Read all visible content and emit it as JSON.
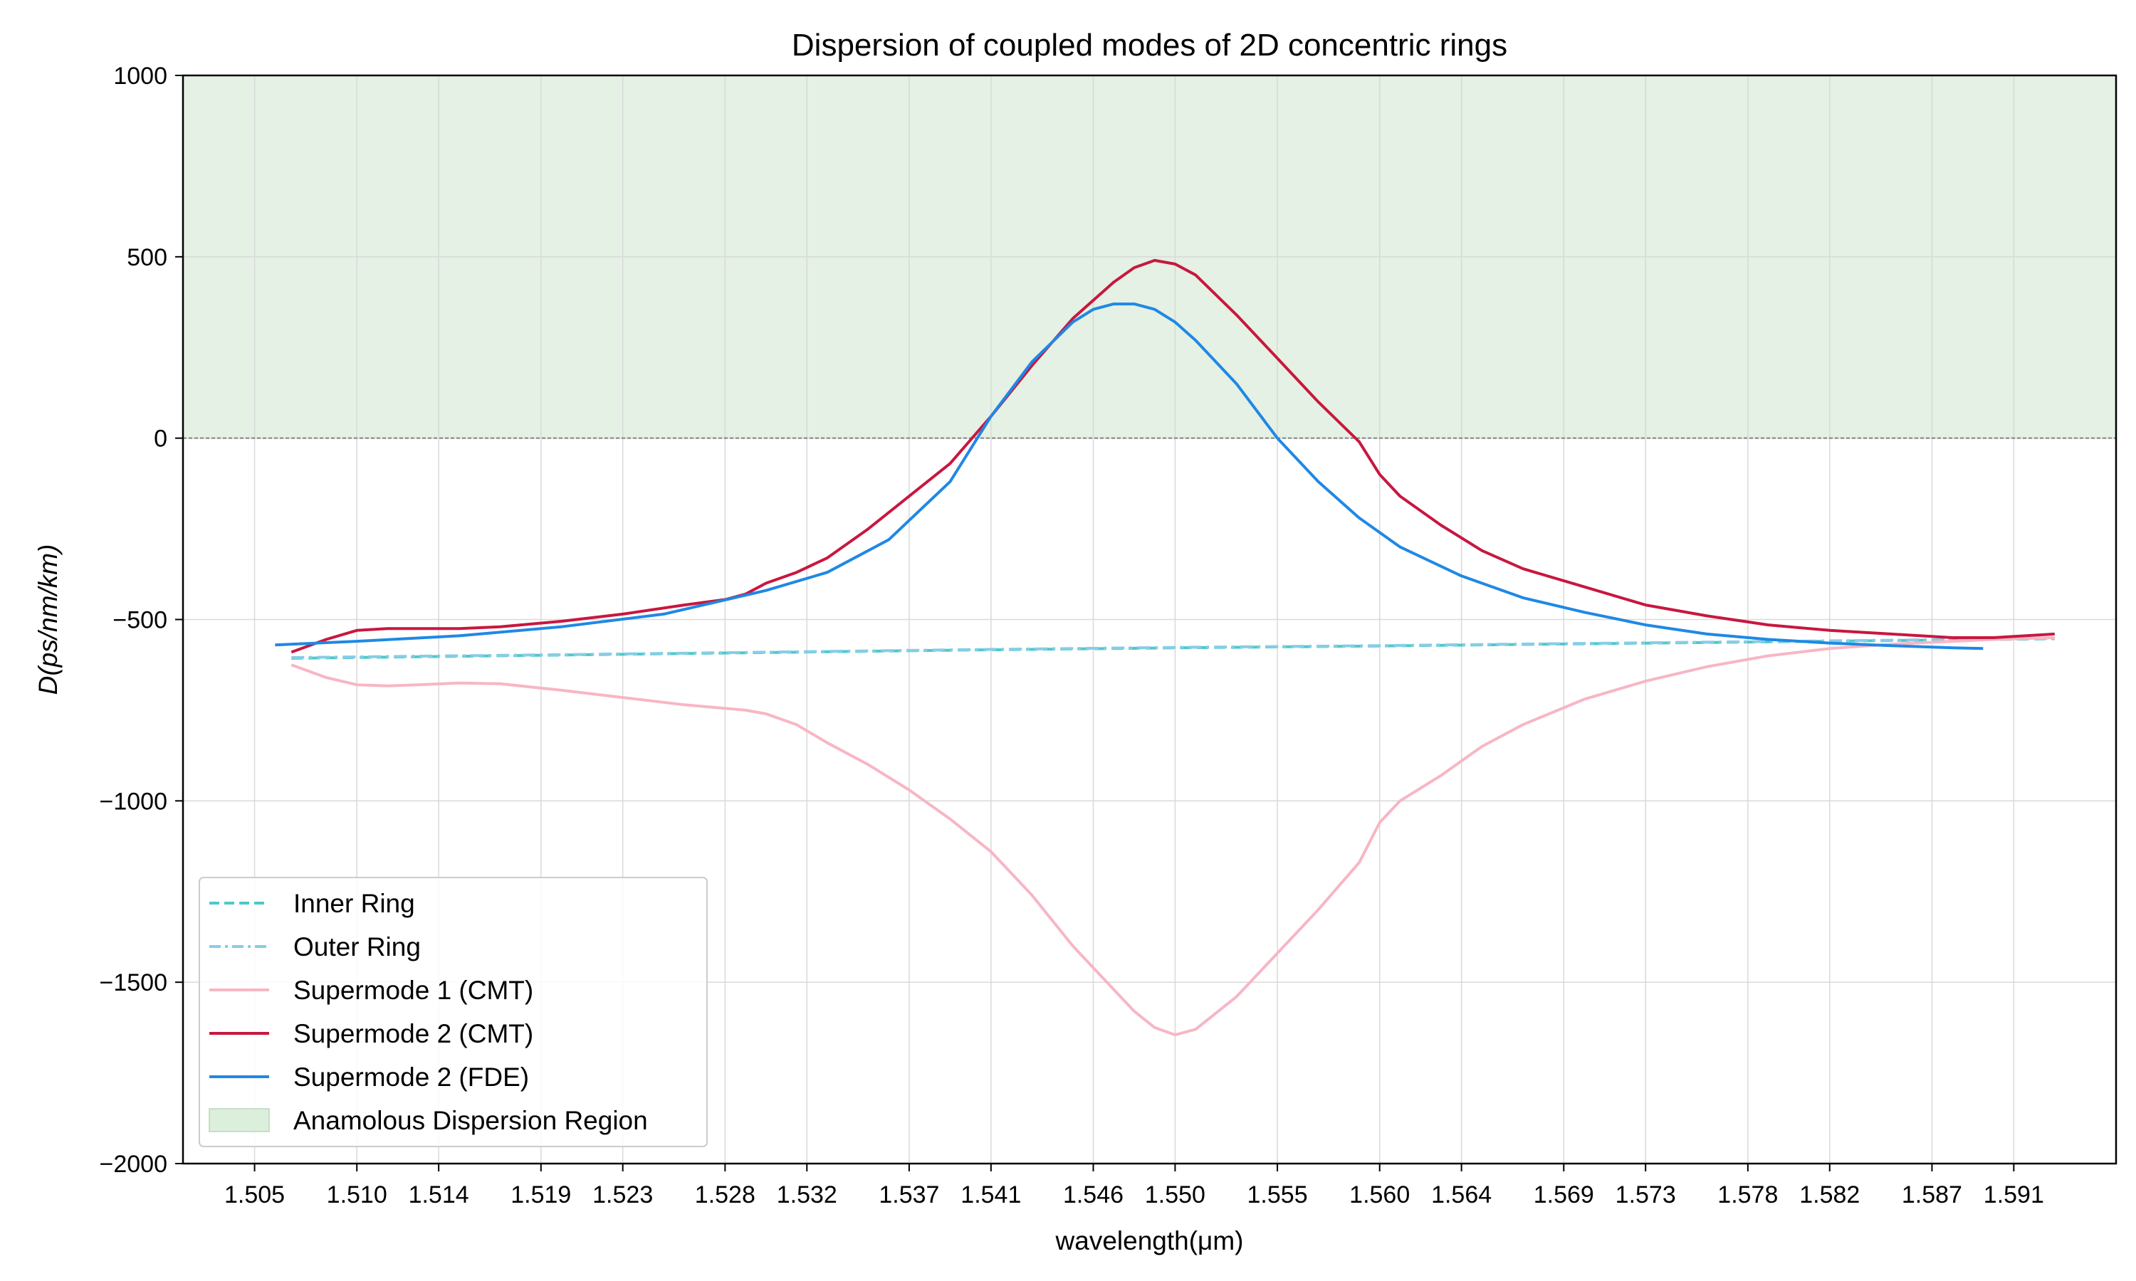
{
  "chart_data": {
    "type": "line",
    "title": "Dispersion of coupled modes of 2D concentric rings",
    "xlabel": "wavelength(μm)",
    "ylabel": "D(ps/nm/km)",
    "xlim": [
      1.5015,
      1.596
    ],
    "ylim": [
      -2000,
      1000
    ],
    "x_ticks": [
      "1.505",
      "1.510",
      "1.514",
      "1.519",
      "1.523",
      "1.528",
      "1.532",
      "1.537",
      "1.541",
      "1.546",
      "1.550",
      "1.555",
      "1.560",
      "1.564",
      "1.569",
      "1.573",
      "1.578",
      "1.582",
      "1.587",
      "1.591"
    ],
    "y_ticks": [
      1000,
      500,
      0,
      -500,
      -1000,
      -1500,
      -2000
    ],
    "y_tick_labels": [
      "1000",
      "500",
      "0",
      "−500",
      "−1000",
      "−1500",
      "−2000"
    ],
    "grid": true,
    "legend_position": "lower-left",
    "shaded_region": {
      "name": "Anamolous Dispersion Region",
      "y_from": 0,
      "y_to": 1000,
      "color": "#e4f1e4"
    },
    "reference_line": {
      "y": 0,
      "style": "dashed",
      "color": "#808080"
    },
    "series": [
      {
        "name": "Inner Ring",
        "color": "#4cc9c9",
        "style": "dashed",
        "x": [
          1.5068,
          1.52,
          1.53,
          1.54,
          1.55,
          1.56,
          1.57,
          1.58,
          1.59,
          1.593
        ],
        "y": [
          -607,
          -598,
          -591,
          -584,
          -578,
          -573,
          -567,
          -561,
          -555,
          -553
        ]
      },
      {
        "name": "Outer Ring",
        "color": "#87cde6",
        "style": "dashdot",
        "x": [
          1.5068,
          1.52,
          1.53,
          1.54,
          1.55,
          1.56,
          1.57,
          1.58,
          1.59,
          1.593
        ],
        "y": [
          -605,
          -597,
          -590,
          -583,
          -577,
          -572,
          -566,
          -560,
          -554,
          -552
        ]
      },
      {
        "name": "Supermode 1 (CMT)",
        "color": "#f7b6c4",
        "style": "solid",
        "x": [
          1.5068,
          1.5085,
          1.51,
          1.5115,
          1.513,
          1.515,
          1.517,
          1.52,
          1.523,
          1.526,
          1.529,
          1.53,
          1.5315,
          1.533,
          1.535,
          1.537,
          1.539,
          1.541,
          1.543,
          1.545,
          1.547,
          1.548,
          1.549,
          1.55,
          1.551,
          1.553,
          1.555,
          1.557,
          1.559,
          1.56,
          1.561,
          1.563,
          1.565,
          1.567,
          1.57,
          1.573,
          1.576,
          1.579,
          1.582,
          1.585,
          1.588,
          1.59,
          1.593
        ],
        "y": [
          -625,
          -660,
          -680,
          -683,
          -680,
          -675,
          -677,
          -695,
          -715,
          -735,
          -750,
          -760,
          -790,
          -840,
          -900,
          -970,
          -1050,
          -1140,
          -1260,
          -1400,
          -1520,
          -1580,
          -1625,
          -1645,
          -1630,
          -1540,
          -1420,
          -1300,
          -1170,
          -1060,
          -1000,
          -930,
          -850,
          -790,
          -720,
          -670,
          -630,
          -600,
          -580,
          -568,
          -560,
          -555,
          -550
        ]
      },
      {
        "name": "Supermode 2 (CMT)",
        "color": "#c8173f",
        "style": "solid",
        "x": [
          1.5068,
          1.5085,
          1.51,
          1.5115,
          1.513,
          1.515,
          1.517,
          1.52,
          1.523,
          1.526,
          1.528,
          1.529,
          1.53,
          1.5315,
          1.533,
          1.535,
          1.537,
          1.539,
          1.541,
          1.543,
          1.545,
          1.546,
          1.547,
          1.548,
          1.549,
          1.55,
          1.551,
          1.553,
          1.555,
          1.557,
          1.559,
          1.56,
          1.561,
          1.563,
          1.565,
          1.567,
          1.57,
          1.573,
          1.576,
          1.579,
          1.582,
          1.585,
          1.588,
          1.59,
          1.593
        ],
        "y": [
          -590,
          -555,
          -530,
          -525,
          -525,
          -525,
          -520,
          -505,
          -485,
          -460,
          -445,
          -430,
          -400,
          -370,
          -330,
          -250,
          -160,
          -70,
          60,
          200,
          330,
          380,
          430,
          470,
          490,
          480,
          450,
          340,
          220,
          100,
          -10,
          -100,
          -160,
          -240,
          -310,
          -360,
          -410,
          -460,
          -490,
          -515,
          -530,
          -540,
          -550,
          -550,
          -540
        ]
      },
      {
        "name": "Supermode 2 (FDE)",
        "color": "#1f88e5",
        "style": "solid",
        "x": [
          1.506,
          1.51,
          1.515,
          1.52,
          1.525,
          1.53,
          1.533,
          1.536,
          1.539,
          1.541,
          1.543,
          1.545,
          1.546,
          1.547,
          1.548,
          1.549,
          1.55,
          1.551,
          1.553,
          1.555,
          1.557,
          1.559,
          1.561,
          1.564,
          1.567,
          1.57,
          1.573,
          1.576,
          1.579,
          1.582,
          1.585,
          1.588,
          1.5895
        ],
        "y": [
          -570,
          -560,
          -545,
          -520,
          -485,
          -420,
          -370,
          -280,
          -120,
          60,
          210,
          320,
          355,
          370,
          370,
          355,
          320,
          270,
          150,
          0,
          -120,
          -220,
          -300,
          -380,
          -440,
          -480,
          -515,
          -540,
          -555,
          -565,
          -572,
          -578,
          -580
        ]
      }
    ]
  }
}
